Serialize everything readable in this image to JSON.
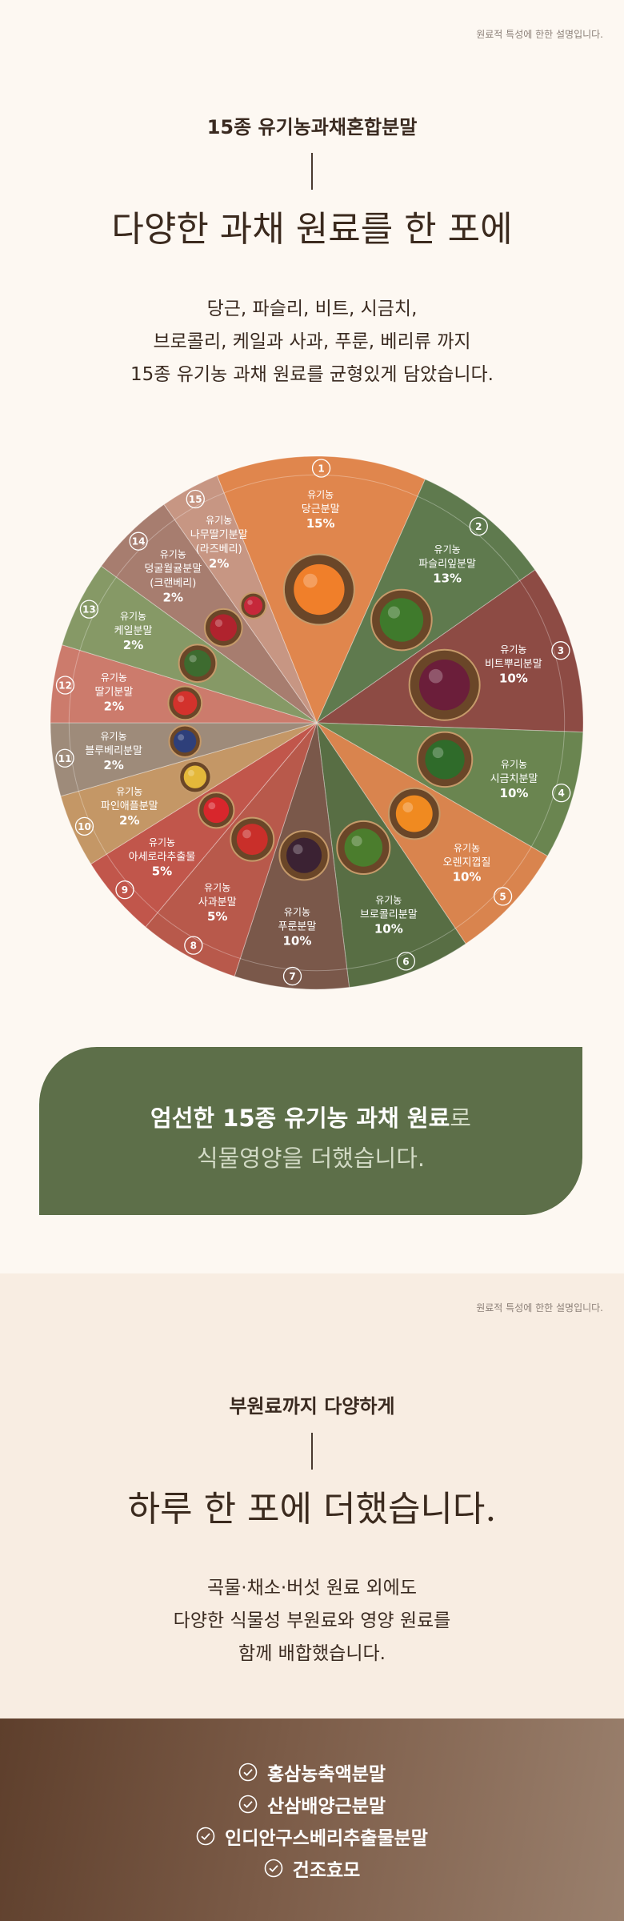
{
  "notice": "원료적 특성에 한한 설명입니다.",
  "section1": {
    "subtitle": "15종 유기농과채혼합분말",
    "title": "다양한 과채 원료를 한 포에",
    "description": [
      "당근, 파슬리, 비트, 시금치,",
      "브로콜리, 케일과 사과, 푸룬, 베리류 까지",
      "15종 유기농 과채 원료를 균형있게 담았습니다."
    ]
  },
  "ingredients": [
    {
      "number": "1",
      "prefix": "유기농",
      "name": "당근분말",
      "ratio": "15%"
    },
    {
      "number": "2",
      "prefix": "유기농",
      "name": "파슬리잎분말",
      "ratio": "13%"
    },
    {
      "number": "3",
      "prefix": "유기농",
      "name": "비트뿌리분말",
      "ratio": "10%"
    },
    {
      "number": "4",
      "prefix": "유기농",
      "name": "시금치분말",
      "ratio": "10%"
    },
    {
      "number": "5",
      "prefix": "유기농",
      "name": "오렌지껍질",
      "ratio": "10%"
    },
    {
      "number": "6",
      "prefix": "유기농",
      "name": "브로콜리분말",
      "ratio": "10%"
    },
    {
      "number": "7",
      "prefix": "유기농",
      "name": "푸룬분말",
      "ratio": "10%"
    },
    {
      "number": "8",
      "prefix": "유기농",
      "name": "사과분말",
      "ratio": "5%"
    },
    {
      "number": "9",
      "prefix": "유기농",
      "name": "아세로라추출물",
      "ratio": "5%"
    },
    {
      "number": "10",
      "prefix": "유기농",
      "name": "파인애플분말",
      "ratio": "2%"
    },
    {
      "number": "11",
      "prefix": "유기농",
      "name": "블루베리분말",
      "ratio": "2%"
    },
    {
      "number": "12",
      "prefix": "유기농",
      "name": "딸기분말",
      "ratio": "2%"
    },
    {
      "number": "13",
      "prefix": "유기농",
      "name": "케일분말",
      "ratio": "2%"
    },
    {
      "number": "14",
      "prefix": "유기농",
      "name": "덩굴월귤분말",
      "note": "(크랜베리)",
      "ratio": "2%"
    },
    {
      "number": "15",
      "prefix": "유기농",
      "name": "나무딸기분말",
      "note": "(라즈베리)",
      "ratio": "2%"
    }
  ],
  "banner": {
    "highlight": "엄선한 15종 유기농 과채 원료",
    "suffix": "로",
    "line2": "식물영양을 더했습니다."
  },
  "section2": {
    "notice": "원료적 특성에 한한 설명입니다.",
    "subtitle": "부원료까지 다양하게",
    "title": "하루 한 포에 더했습니다.",
    "description": [
      "곡물·채소·버섯 원료 외에도",
      "다양한 식물성 부원료와 영양 원료를",
      "함께 배합했습니다."
    ]
  },
  "sub_ingredients": [
    "홍삼농축액분말",
    "산삼배양근분말",
    "인디안구스베리추출물분말",
    "건조효모"
  ]
}
